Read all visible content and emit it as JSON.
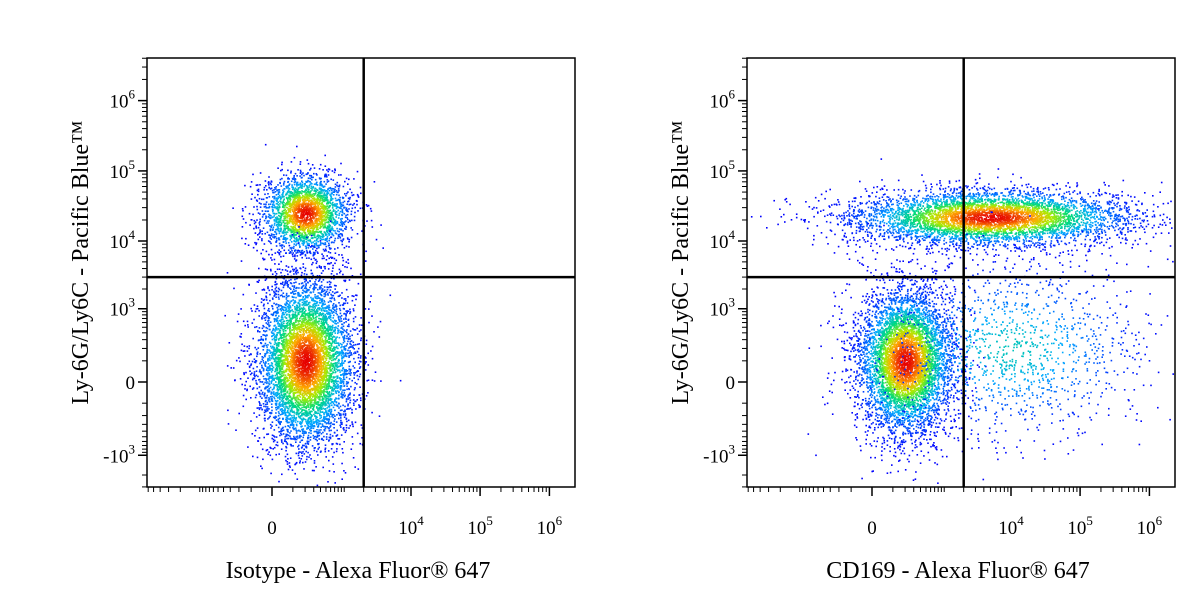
{
  "chart_data": [
    {
      "type": "scatter",
      "title": "",
      "xlabel": "Isotype - Alexa Fluor® 647",
      "ylabel": "Ly-6G/Ly6C - Pacific Blue™",
      "x_scale": "biexponential",
      "y_scale": "biexponential",
      "x_ticks": [
        {
          "value": 0,
          "base": "0",
          "exp": ""
        },
        {
          "value": 10000,
          "base": "10",
          "exp": "4"
        },
        {
          "value": 100000,
          "base": "10",
          "exp": "5"
        },
        {
          "value": 1000000,
          "base": "10",
          "exp": "6"
        }
      ],
      "y_ticks": [
        {
          "value": 1000000,
          "base": "10",
          "exp": "6"
        },
        {
          "value": 100000,
          "base": "10",
          "exp": "5"
        },
        {
          "value": 10000,
          "base": "10",
          "exp": "4"
        },
        {
          "value": 1000,
          "base": "10",
          "exp": "3"
        },
        {
          "value": 0,
          "base": "0",
          "exp": ""
        },
        {
          "value": -1000,
          "base": "-10",
          "exp": "3"
        }
      ],
      "gate": {
        "x": 2000,
        "y": 3000
      },
      "populations": [
        {
          "name": "",
          "x_center": 200,
          "y_center": 25000,
          "count": 2500
        },
        {
          "name": "",
          "x_center": 200,
          "y_center": 100,
          "count": 6000
        }
      ],
      "grid": false,
      "legend": "none"
    },
    {
      "type": "scatter",
      "title": "",
      "xlabel": "CD169 - Alexa Fluor® 647",
      "ylabel": "Ly-6G/Ly6C - Pacific Blue™",
      "x_scale": "biexponential",
      "y_scale": "biexponential",
      "x_ticks": [
        {
          "value": 0,
          "base": "0",
          "exp": ""
        },
        {
          "value": 10000,
          "base": "10",
          "exp": "4"
        },
        {
          "value": 100000,
          "base": "10",
          "exp": "5"
        },
        {
          "value": 1000000,
          "base": "10",
          "exp": "6"
        }
      ],
      "y_ticks": [
        {
          "value": 1000000,
          "base": "10",
          "exp": "6"
        },
        {
          "value": 100000,
          "base": "10",
          "exp": "5"
        },
        {
          "value": 10000,
          "base": "10",
          "exp": "4"
        },
        {
          "value": 1000,
          "base": "10",
          "exp": "3"
        },
        {
          "value": 0,
          "base": "0",
          "exp": ""
        },
        {
          "value": -1000,
          "base": "-10",
          "exp": "3"
        }
      ],
      "gate": {
        "x": 2000,
        "y": 3000
      },
      "populations": [
        {
          "name": "",
          "x_center": 200,
          "y_center": 100,
          "count": 5500
        },
        {
          "name": "",
          "x_center": 5000,
          "y_center": 22000,
          "count": 5000
        },
        {
          "name": "",
          "x_center": 10000,
          "y_center": 200,
          "count": 1300
        }
      ],
      "grid": false,
      "legend": "none"
    }
  ]
}
